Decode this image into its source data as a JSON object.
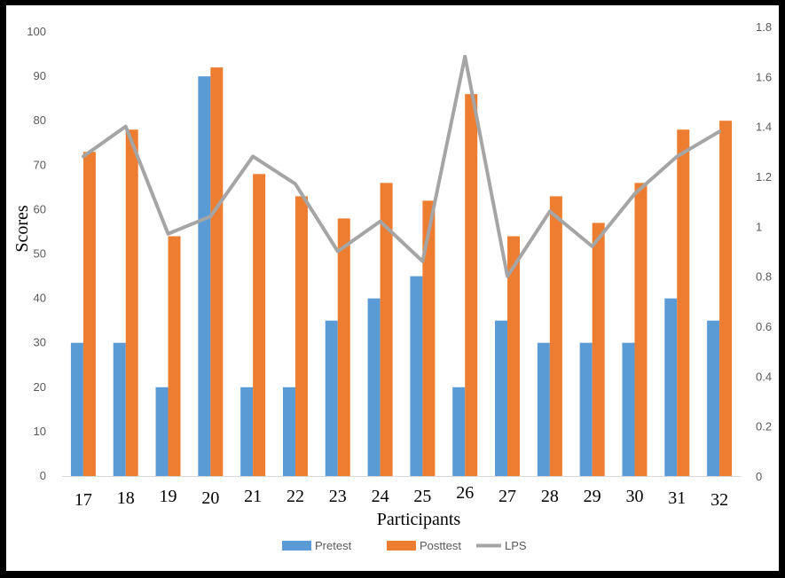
{
  "chart_data": {
    "type": "bar",
    "xlabel": "Participants",
    "ylabel": "Scores",
    "categories": [
      "17",
      "18",
      "19",
      "20",
      "21",
      "22",
      "23",
      "24",
      "25",
      "26",
      "27",
      "28",
      "29",
      "30",
      "31",
      "32"
    ],
    "series": [
      {
        "name": "Pretest",
        "kind": "bar",
        "axis": "left",
        "color": "#5B9BD5",
        "values": [
          30,
          30,
          20,
          90,
          20,
          20,
          35,
          40,
          45,
          20,
          35,
          30,
          30,
          30,
          40,
          35
        ]
      },
      {
        "name": "Posttest",
        "kind": "bar",
        "axis": "left",
        "color": "#ED7D31",
        "values": [
          73,
          78,
          54,
          92,
          68,
          63,
          58,
          66,
          62,
          86,
          54,
          63,
          57,
          66,
          78,
          80
        ]
      },
      {
        "name": "LPS",
        "kind": "line",
        "axis": "right",
        "color": "#A5A5A5",
        "values": [
          1.28,
          1.4,
          0.97,
          1.04,
          1.28,
          1.17,
          0.9,
          1.02,
          0.86,
          1.68,
          0.8,
          1.06,
          0.92,
          1.13,
          1.28,
          1.38
        ]
      }
    ],
    "ylim": [
      0,
      100
    ],
    "yticks": [
      "0",
      "10",
      "20",
      "30",
      "40",
      "50",
      "60",
      "70",
      "80",
      "90",
      "100"
    ],
    "y2lim": [
      0,
      1.8
    ],
    "y2ticks": [
      "0",
      "0.2",
      "0.4",
      "0.6",
      "0.8",
      "1",
      "1.2",
      "1.4",
      "1.6",
      "1.8"
    ],
    "grid": false,
    "legend_position": "bottom"
  }
}
